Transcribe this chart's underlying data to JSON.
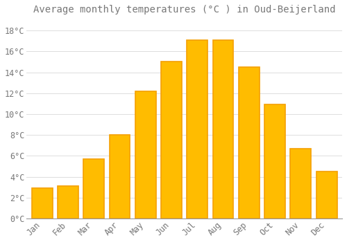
{
  "title": "Average monthly temperatures (°C ) in Oud-Beijerland",
  "months": [
    "Jan",
    "Feb",
    "Mar",
    "Apr",
    "May",
    "Jun",
    "Jul",
    "Aug",
    "Sep",
    "Oct",
    "Nov",
    "Dec"
  ],
  "temperatures": [
    2.9,
    3.1,
    5.7,
    8.0,
    12.2,
    15.0,
    17.1,
    17.1,
    14.5,
    10.9,
    6.7,
    4.5
  ],
  "bar_color": "#FFBC00",
  "bar_edge_color": "#F5A000",
  "background_color": "#FFFFFF",
  "grid_color": "#DDDDDD",
  "text_color": "#777777",
  "ylim": [
    0,
    19
  ],
  "yticks": [
    0,
    2,
    4,
    6,
    8,
    10,
    12,
    14,
    16,
    18
  ],
  "title_fontsize": 10,
  "tick_fontsize": 8.5,
  "bar_width": 0.8
}
